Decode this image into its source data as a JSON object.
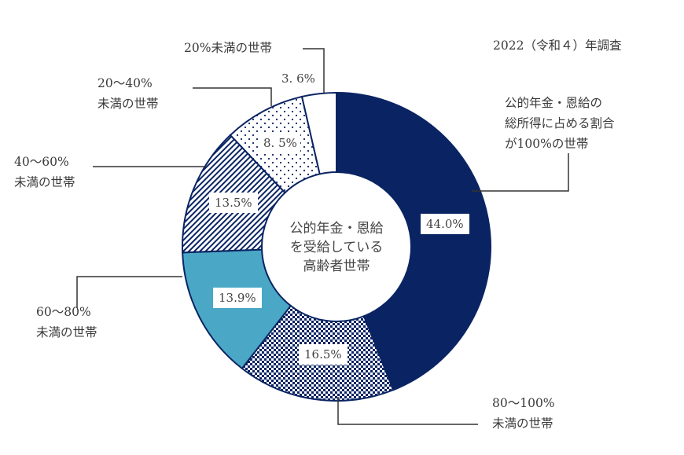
{
  "chart_data": {
    "type": "pie",
    "subtype": "donut",
    "title": "",
    "survey_note": "2022（令和４）年調査",
    "center_label": [
      "公的年金・恩給",
      "を受給している",
      "高齢者世帯"
    ],
    "categories": [
      "公的年金・恩給の総所得に占める割合が100%の世帯",
      "80～100%未満の世帯",
      "60～80%未満の世帯",
      "40～60%未満の世帯",
      "20～40%未満の世帯",
      "20%未満の世帯"
    ],
    "values": [
      44.0,
      16.5,
      13.9,
      13.5,
      8.5,
      3.6
    ],
    "value_labels": [
      "44.0%",
      "16.5%",
      "13.9%",
      "13.5%",
      "8.5%",
      "3.6%"
    ],
    "unit": "%",
    "start_angle": "12 o'clock",
    "direction": "clockwise",
    "fills": [
      {
        "pattern": "solid",
        "color": "#0a2463"
      },
      {
        "pattern": "checkerboard",
        "color": "#0a2463"
      },
      {
        "pattern": "solid",
        "color": "#4aa8c6"
      },
      {
        "pattern": "diagonal-hatch",
        "color": "#0a2463"
      },
      {
        "pattern": "dots",
        "color": "#0a2463"
      },
      {
        "pattern": "solid",
        "color": "#ffffff"
      }
    ],
    "legend": "callout-labels"
  },
  "labels": {
    "survey": "2022（令和４）年調査",
    "cat0": [
      "公的年金・恩給の",
      "総所得に占める割合",
      "が100%の世帯"
    ],
    "cat1": [
      "80～100%",
      "未満の世帯"
    ],
    "cat2": [
      "60～80%",
      "未満の世帯"
    ],
    "cat3": [
      "40～60%",
      "未満の世帯"
    ],
    "cat4": [
      "20～40%",
      "未満の世帯"
    ],
    "cat5": [
      "20%未満の世帯"
    ],
    "center": [
      "公的年金・恩給",
      "を受給している",
      "高齢者世帯"
    ],
    "pct": [
      "44.0%",
      "16.5%",
      "13.9%",
      "13.5%",
      "8. 5%",
      "3. 6%"
    ]
  }
}
